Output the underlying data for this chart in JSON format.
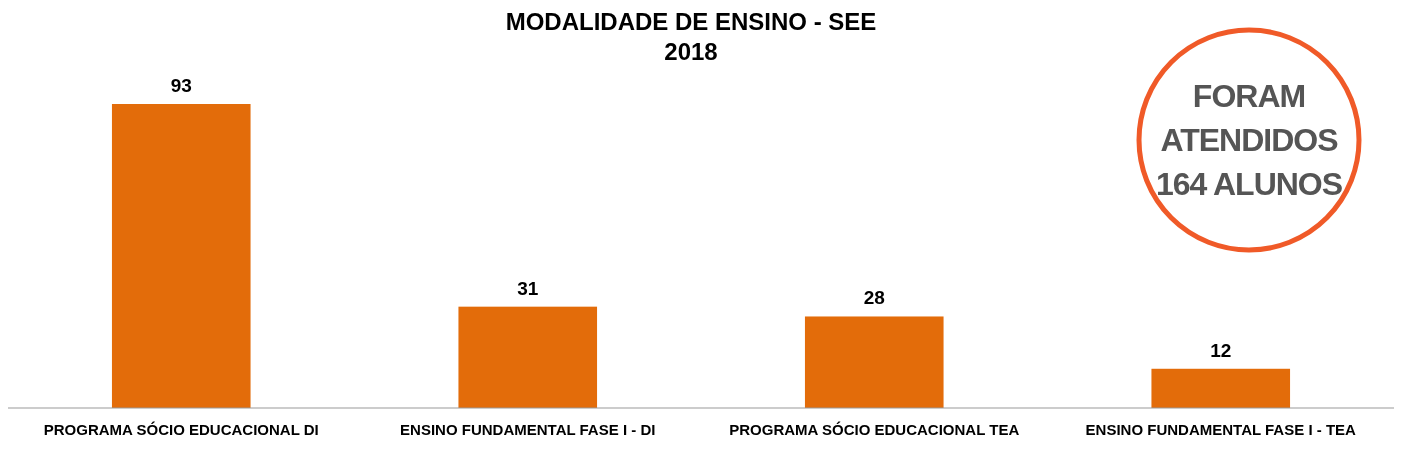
{
  "chart_data": {
    "type": "bar",
    "title": "MODALIDADE DE ENSINO - SEE",
    "subtitle": "2018",
    "categories": [
      "PROGRAMA SÓCIO EDUCACIONAL DI",
      "ENSINO FUNDAMENTAL FASE I - DI",
      "PROGRAMA SÓCIO EDUCACIONAL TEA",
      "ENSINO FUNDAMENTAL FASE I - TEA"
    ],
    "values": [
      93,
      31,
      28,
      12
    ],
    "color": "#e36c0a",
    "data_labels": true,
    "annotations": [
      "FORAM ATENDIDOS 164 ALUNOS"
    ]
  }
}
